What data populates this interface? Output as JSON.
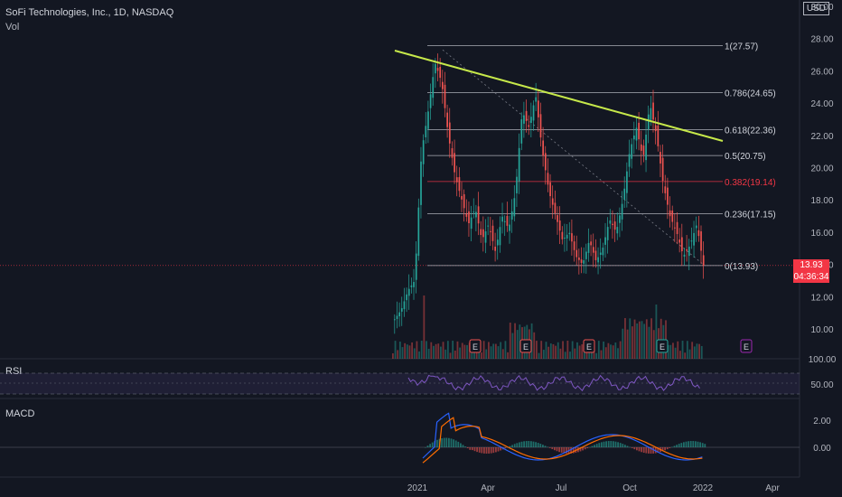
{
  "header": {
    "title": "SoFi Technologies, Inc., 1D, NASDAQ",
    "vol_label": "Vol",
    "currency": "USD",
    "rsi_label": "RSI",
    "macd_label": "MACD",
    "last_price": "13.93",
    "countdown": "04:36:34"
  },
  "chart_data": {
    "type": "line",
    "title": "SoFi Technologies, Inc., 1D, NASDAQ",
    "price_axis": {
      "ticks": [
        "30.00",
        "28.00",
        "26.00",
        "24.00",
        "22.00",
        "20.00",
        "18.00",
        "16.00",
        "14.00",
        "12.00",
        "10.00"
      ],
      "ylim": [
        9,
        30
      ]
    },
    "rsi_axis": {
      "ticks": [
        "100.00",
        "50.00"
      ]
    },
    "macd_axis": {
      "ticks": [
        "2.00",
        "0.00"
      ]
    },
    "x_ticks": [
      "2021",
      "Apr",
      "Jul",
      "Oct",
      "2022",
      "Apr"
    ],
    "fib_levels": [
      {
        "ratio": "1",
        "price": 27.57,
        "label": "1(27.57)"
      },
      {
        "ratio": "0.786",
        "price": 24.65,
        "label": "0.786(24.65)"
      },
      {
        "ratio": "0.618",
        "price": 22.36,
        "label": "0.618(22.36)"
      },
      {
        "ratio": "0.5",
        "price": 20.75,
        "label": "0.5(20.75)"
      },
      {
        "ratio": "0.382",
        "price": 19.14,
        "label": "0.382(19.14)"
      },
      {
        "ratio": "0.236",
        "price": 17.15,
        "label": "0.236(17.15)"
      },
      {
        "ratio": "0",
        "price": 13.93,
        "label": "0(13.93)"
      }
    ],
    "price_path": [
      10.6,
      11.2,
      12.4,
      13.0,
      21.0,
      23.5,
      26.5,
      25.3,
      22.0,
      19.5,
      18.0,
      16.5,
      17.5,
      15.5,
      16.5,
      14.8,
      17.0,
      16.2,
      18.5,
      23.5,
      22.5,
      24.5,
      21.0,
      18.5,
      17.0,
      15.5,
      16.0,
      14.5,
      14.0,
      15.5,
      14.2,
      15.0,
      16.8,
      16.0,
      18.0,
      21.0,
      22.5,
      20.5,
      24.0,
      22.0,
      19.0,
      17.0,
      16.0,
      14.5,
      15.2,
      16.5,
      13.93
    ],
    "earnings_markers": [
      "E",
      "E",
      "E",
      "E",
      "E"
    ],
    "trendline": {
      "from_price": 27.3,
      "to_price": 21.8
    }
  },
  "colors": {
    "background": "#131722",
    "up": "#26a69a",
    "down": "#ef5350",
    "trendline": "#c6e84a",
    "fib_line": "#d1d4dc",
    "fib_highlight": "#f23645",
    "rsi": "#7e57c2",
    "macd": "#2962ff",
    "signal": "#ff6d00"
  }
}
